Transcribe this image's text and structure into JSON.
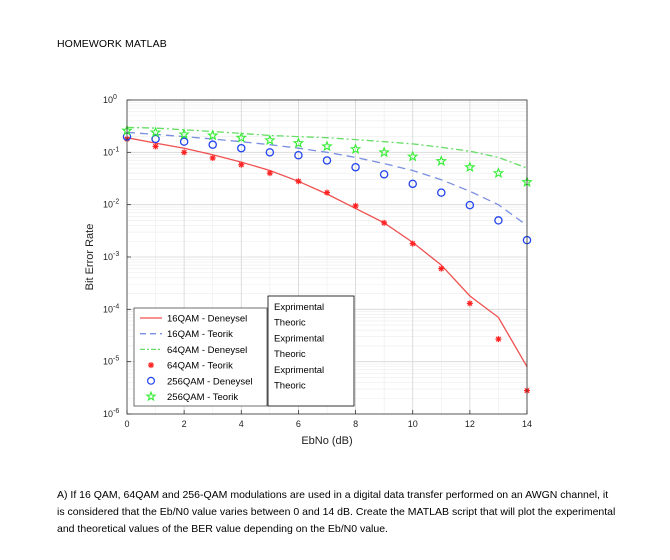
{
  "document": {
    "title": "HOMEWORK MATLAB",
    "question": "A) If 16 QAM, 64QAM and 256-QAM modulations are used in a digital data transfer performed on an AWGN channel, it is considered that the Eb/N0 value varies between 0 and 14 dB. Create the MATLAB script that will plot the experimental and theoretical values of the BER value depending on the Eb/N0 value."
  },
  "chart_data": {
    "type": "line",
    "xlabel": "EbNo (dB)",
    "ylabel": "Bit Error Rate",
    "xlim": [
      0,
      14
    ],
    "ylim": [
      1e-06,
      1
    ],
    "yscale": "log",
    "grid": true,
    "legend_position": "bottom-left",
    "x_ticks": [
      "0",
      "2",
      "4",
      "6",
      "8",
      "10",
      "12",
      "14"
    ],
    "y_ticks": [
      {
        "base": "10",
        "exp": "0"
      },
      {
        "base": "10",
        "exp": "-1"
      },
      {
        "base": "10",
        "exp": "-2"
      },
      {
        "base": "10",
        "exp": "-3"
      },
      {
        "base": "10",
        "exp": "-4"
      },
      {
        "base": "10",
        "exp": "-5"
      },
      {
        "base": "10",
        "exp": "-6"
      }
    ],
    "series": [
      {
        "name": "16QAM - Deneysel",
        "style": "line",
        "color": "#f05050",
        "x": [
          0,
          1,
          2,
          3,
          4,
          5,
          6,
          7,
          8,
          9,
          10,
          11,
          12,
          13,
          14
        ],
        "y": [
          0.19,
          0.15,
          0.12,
          0.09,
          0.065,
          0.045,
          0.028,
          0.016,
          0.0085,
          0.0045,
          0.0019,
          0.0007,
          0.00018,
          7e-05,
          8e-06
        ]
      },
      {
        "name": "16QAM - Teorik",
        "style": "dashed",
        "color": "#7a8fe0",
        "x": [
          0,
          1,
          2,
          3,
          4,
          5,
          6,
          7,
          8,
          9,
          10,
          11,
          12,
          13,
          14
        ],
        "y": [
          0.24,
          0.22,
          0.2,
          0.18,
          0.16,
          0.14,
          0.12,
          0.1,
          0.08,
          0.061,
          0.045,
          0.03,
          0.018,
          0.01,
          0.004
        ]
      },
      {
        "name": "64QAM - Deneysel",
        "style": "dashdot",
        "color": "#66dd66",
        "x": [
          0,
          1,
          2,
          3,
          4,
          5,
          6,
          7,
          8,
          9,
          10,
          11,
          12,
          13,
          14
        ],
        "y": [
          0.3,
          0.29,
          0.27,
          0.25,
          0.23,
          0.21,
          0.2,
          0.19,
          0.175,
          0.16,
          0.145,
          0.125,
          0.105,
          0.08,
          0.05
        ]
      },
      {
        "name": "64QAM - Teorik",
        "style": "marker-asterisk",
        "color": "#ff2222",
        "x": [
          0,
          1,
          2,
          3,
          4,
          5,
          6,
          7,
          8,
          9,
          10,
          11,
          12,
          13,
          14
        ],
        "y": [
          0.18,
          0.13,
          0.1,
          0.078,
          0.058,
          0.04,
          0.028,
          0.017,
          0.0095,
          0.0045,
          0.0018,
          0.0006,
          0.00013,
          2.7e-05,
          2.8e-06
        ]
      },
      {
        "name": "256QAM - Deneysel",
        "style": "marker-circle",
        "color": "#2244ee",
        "x": [
          0,
          1,
          2,
          3,
          4,
          5,
          6,
          7,
          8,
          9,
          10,
          11,
          12,
          13,
          14
        ],
        "y": [
          0.2,
          0.18,
          0.16,
          0.14,
          0.12,
          0.1,
          0.088,
          0.07,
          0.052,
          0.038,
          0.025,
          0.017,
          0.0098,
          0.005,
          0.0021
        ]
      },
      {
        "name": "256QAM - Teorik",
        "style": "marker-star",
        "color": "#33ee33",
        "x": [
          0,
          1,
          2,
          3,
          4,
          5,
          6,
          7,
          8,
          9,
          10,
          11,
          12,
          13,
          14
        ],
        "y": [
          0.26,
          0.24,
          0.22,
          0.21,
          0.19,
          0.17,
          0.15,
          0.13,
          0.115,
          0.1,
          0.083,
          0.068,
          0.052,
          0.04,
          0.027
        ]
      }
    ],
    "annotations": [
      "Exprimental",
      "Theoric",
      "Exprimental",
      "Theoric",
      "Exprimental",
      "Theoric"
    ]
  }
}
